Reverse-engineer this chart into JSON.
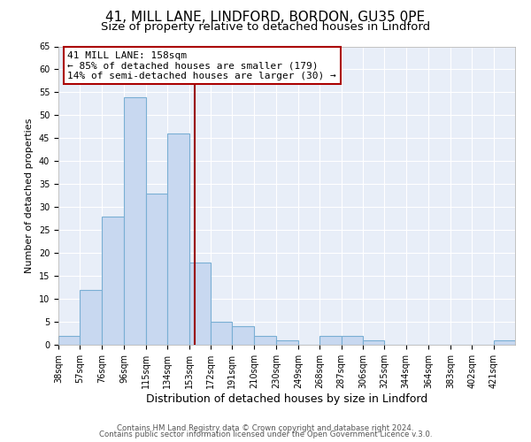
{
  "title": "41, MILL LANE, LINDFORD, BORDON, GU35 0PE",
  "subtitle": "Size of property relative to detached houses in Lindford",
  "xlabel": "Distribution of detached houses by size in Lindford",
  "ylabel": "Number of detached properties",
  "bin_edges": [
    38,
    57,
    76,
    96,
    115,
    134,
    153,
    172,
    191,
    210,
    230,
    249,
    268,
    287,
    306,
    325,
    344,
    364,
    383,
    402,
    421,
    440
  ],
  "bar_heights": [
    2,
    12,
    28,
    54,
    33,
    46,
    18,
    5,
    4,
    2,
    1,
    0,
    2,
    2,
    1,
    0,
    0,
    0,
    0,
    0,
    1
  ],
  "bar_color": "#c8d8f0",
  "bar_edge_color": "#7aafd4",
  "vline_x": 158,
  "vline_color": "#990000",
  "ylim": [
    0,
    65
  ],
  "yticks": [
    0,
    5,
    10,
    15,
    20,
    25,
    30,
    35,
    40,
    45,
    50,
    55,
    60,
    65
  ],
  "xtick_labels": [
    "38sqm",
    "57sqm",
    "76sqm",
    "96sqm",
    "115sqm",
    "134sqm",
    "153sqm",
    "172sqm",
    "191sqm",
    "210sqm",
    "230sqm",
    "249sqm",
    "268sqm",
    "287sqm",
    "306sqm",
    "325sqm",
    "344sqm",
    "364sqm",
    "383sqm",
    "402sqm",
    "421sqm"
  ],
  "annotation_title": "41 MILL LANE: 158sqm",
  "annotation_line1": "← 85% of detached houses are smaller (179)",
  "annotation_line2": "14% of semi-detached houses are larger (30) →",
  "annotation_box_color": "#ffffff",
  "annotation_box_edge": "#aa0000",
  "footer1": "Contains HM Land Registry data © Crown copyright and database right 2024.",
  "footer2": "Contains public sector information licensed under the Open Government Licence v.3.0.",
  "bg_color": "#ffffff",
  "plot_bg_color": "#e8eef8",
  "title_fontsize": 11,
  "subtitle_fontsize": 9.5,
  "tick_fontsize": 7,
  "ylabel_fontsize": 8,
  "xlabel_fontsize": 9
}
